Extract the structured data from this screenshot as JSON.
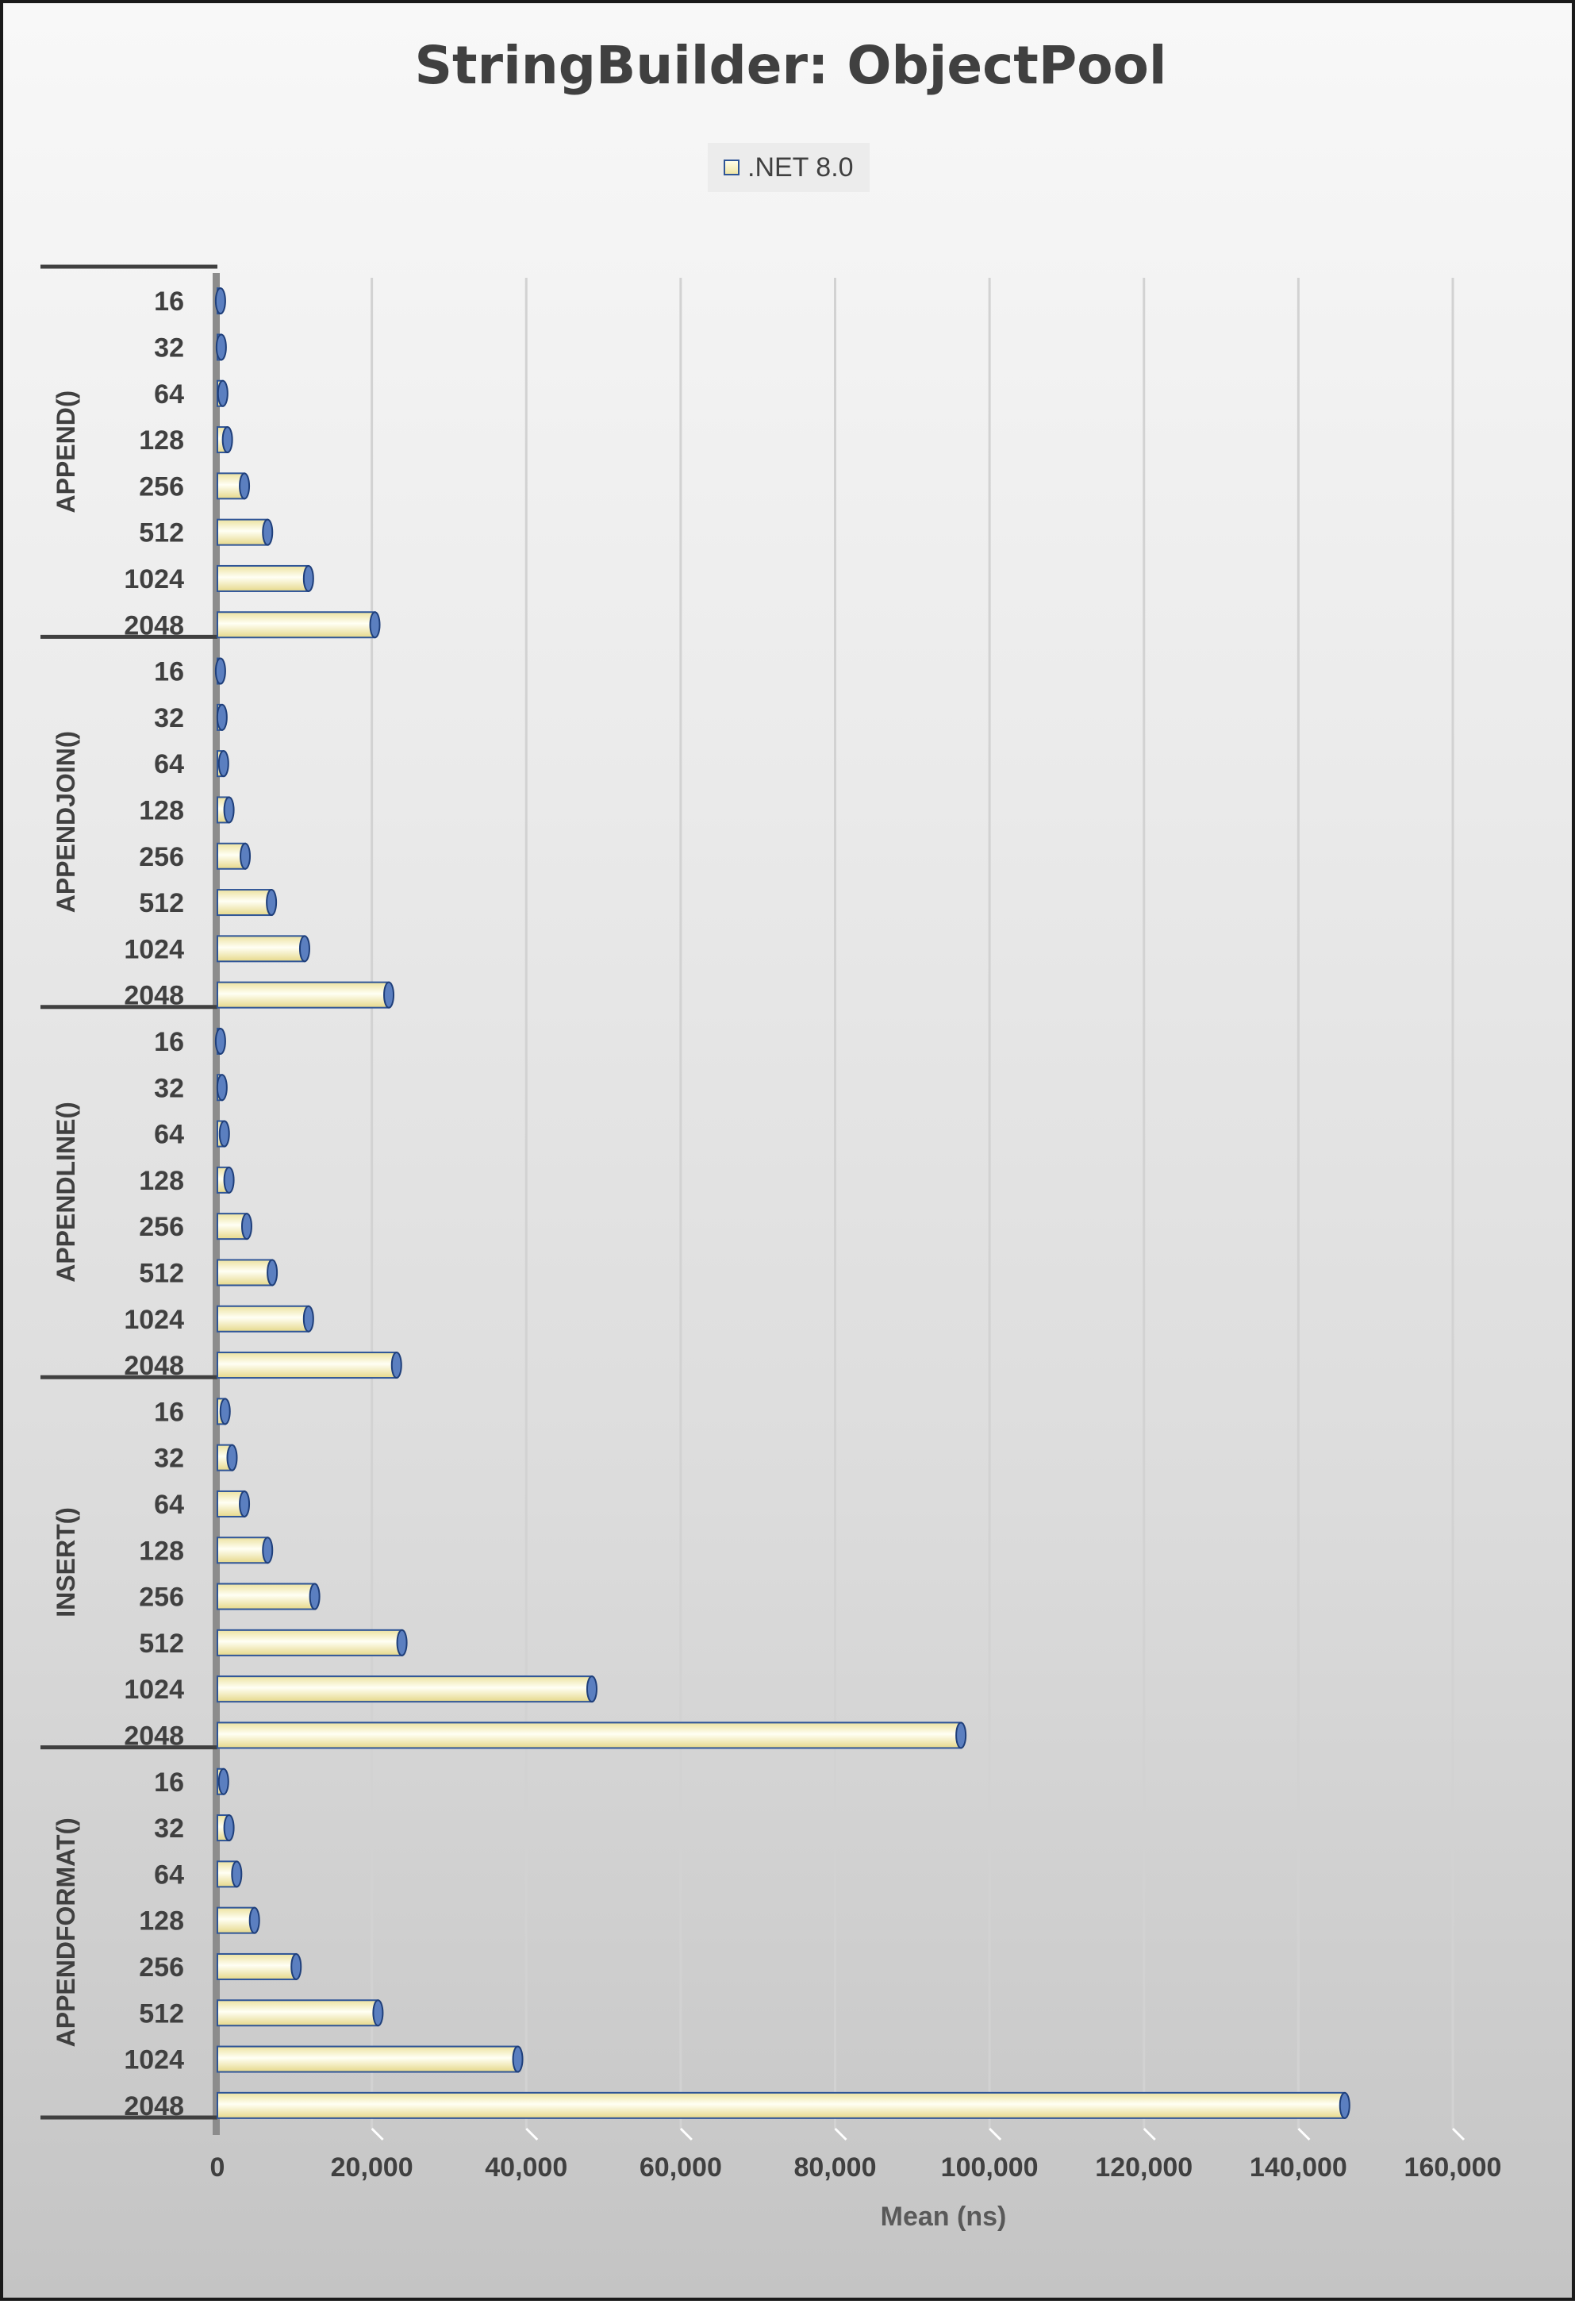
{
  "chart_data": {
    "type": "bar",
    "orientation": "horizontal",
    "title": "StringBuilder: ObjectPool",
    "xlabel": "Mean (ns)",
    "ylabel": "",
    "xlim": [
      0,
      160000
    ],
    "x_ticks": [
      "0",
      "20,000",
      "40,000",
      "60,000",
      "80,000",
      "100,000",
      "120,000",
      "140,000",
      "160,000"
    ],
    "legend": {
      "position": "top-center",
      "entries": [
        ".NET 8.0"
      ]
    },
    "grid": "vertical",
    "groups": [
      {
        "name": "APPEND()",
        "categories": [
          "16",
          "32",
          "64",
          "128",
          "256",
          "512",
          "1024",
          "2048"
        ],
        "values": [
          400,
          500,
          700,
          1300,
          3500,
          6500,
          11800,
          20400
        ]
      },
      {
        "name": "APPENDJOIN()",
        "categories": [
          "16",
          "32",
          "64",
          "128",
          "256",
          "512",
          "1024",
          "2048"
        ],
        "values": [
          400,
          600,
          800,
          1500,
          3600,
          7000,
          11300,
          22200
        ]
      },
      {
        "name": "APPENDLINE()",
        "categories": [
          "16",
          "32",
          "64",
          "128",
          "256",
          "512",
          "1024",
          "2048"
        ],
        "values": [
          400,
          600,
          900,
          1500,
          3800,
          7100,
          11800,
          23200
        ]
      },
      {
        "name": "INSERT()",
        "categories": [
          "16",
          "32",
          "64",
          "128",
          "256",
          "512",
          "1024",
          "2048"
        ],
        "values": [
          1000,
          1900,
          3500,
          6500,
          12600,
          23900,
          48500,
          96300
        ]
      },
      {
        "name": "APPENDFORMAT()",
        "categories": [
          "16",
          "32",
          "64",
          "128",
          "256",
          "512",
          "1024",
          "2048"
        ],
        "values": [
          800,
          1500,
          2500,
          4800,
          10200,
          20800,
          38900,
          146000
        ]
      }
    ],
    "series": [
      {
        "name": ".NET 8.0"
      }
    ]
  }
}
